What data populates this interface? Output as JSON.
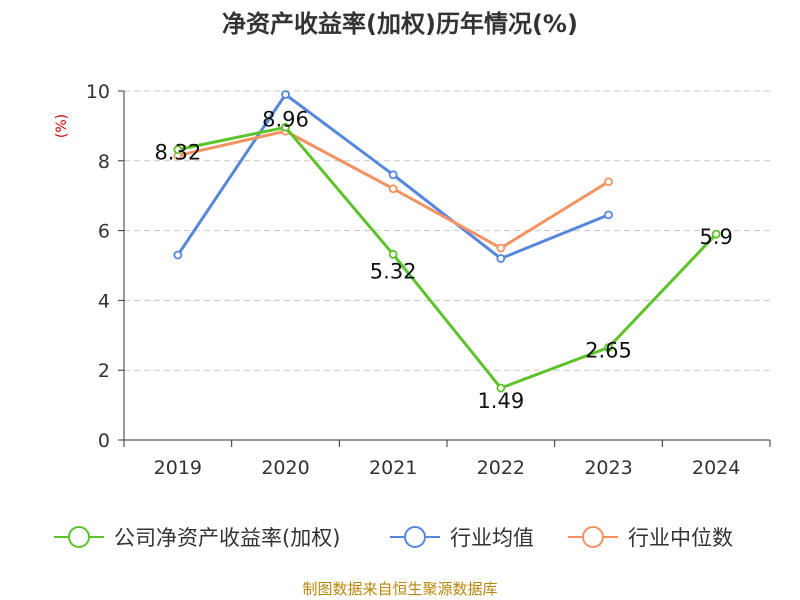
{
  "chart_data": {
    "type": "line",
    "title": "净资产收益率(加权)历年情况(%)",
    "ylabel": "(%)",
    "categories": [
      "2019",
      "2020",
      "2021",
      "2022",
      "2023",
      "2024"
    ],
    "ylim": [
      0,
      10
    ],
    "yticks": [
      "0",
      "2",
      "4",
      "6",
      "8",
      "10"
    ],
    "grid": true,
    "legend_position": "bottom",
    "series": [
      {
        "name": "公司净资产收益率(加权)",
        "color": "#5cc32a",
        "values": [
          8.32,
          8.96,
          5.32,
          1.49,
          2.65,
          5.9
        ],
        "labels": [
          "8.32",
          "8.96",
          "5.32",
          "1.49",
          "2.65",
          "5.9"
        ]
      },
      {
        "name": "行业均值",
        "color": "#5588dd",
        "values": [
          5.3,
          9.9,
          7.6,
          5.2,
          6.45,
          null
        ],
        "labels": []
      },
      {
        "name": "行业中位数",
        "color": "#f59262",
        "values": [
          8.15,
          8.85,
          7.2,
          5.5,
          7.4,
          null
        ],
        "labels": []
      }
    ],
    "source": "制图数据来自恒生聚源数据库"
  }
}
